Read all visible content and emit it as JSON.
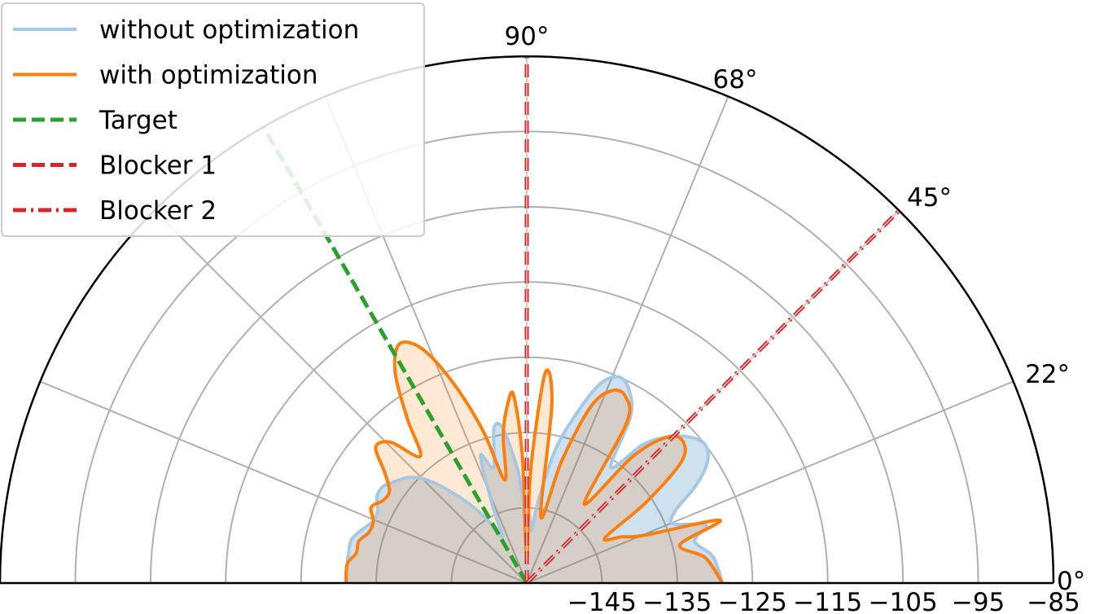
{
  "chart_data": {
    "type": "polar-area",
    "theta_range_deg": [
      0,
      180
    ],
    "r_range": [
      -155,
      -85
    ],
    "r_ticks": [
      -145,
      -135,
      -125,
      -115,
      -105,
      -95,
      -85
    ],
    "r_tick_labels": [
      "−145",
      "−135",
      "−125",
      "−115",
      "−105",
      "−95",
      "−85"
    ],
    "theta_gridlines_deg": [
      22.5,
      45,
      67.5,
      90,
      112.5,
      135,
      157.5
    ],
    "theta_tick_labels": [
      {
        "deg": 0,
        "label": "0°"
      },
      {
        "deg": 22.5,
        "label": "22°"
      },
      {
        "deg": 45,
        "label": "45°"
      },
      {
        "deg": 67.5,
        "label": "68°"
      },
      {
        "deg": 90,
        "label": "90°"
      }
    ],
    "grid": true,
    "legend_placement": "top-left",
    "series": [
      {
        "name": "without optimization",
        "color": "#a6c8e3",
        "fill": "#1f77b4",
        "theta_deg": [
          0,
          8,
          14,
          18,
          22,
          26,
          30,
          34,
          38,
          42,
          46,
          50,
          54,
          58,
          62,
          66,
          70,
          74,
          78,
          82,
          85,
          88,
          90,
          92,
          94,
          96,
          99,
          102,
          106,
          110,
          114,
          118,
          122,
          126,
          130,
          134,
          138,
          142,
          146,
          150,
          154,
          158,
          162,
          166,
          170,
          174,
          180
        ],
        "r": [
          -129,
          -130,
          -132,
          -130,
          -134,
          -133,
          -129,
          -126,
          -125,
          -126,
          -128,
          -131,
          -136,
          -129,
          -126,
          -125,
          -127,
          -132,
          -137,
          -144,
          -148,
          -146,
          -151,
          -146,
          -141,
          -138,
          -134,
          -134,
          -139,
          -137,
          -144,
          -148,
          -145,
          -142,
          -139,
          -136,
          -134,
          -133,
          -132,
          -132,
          -133,
          -133,
          -132,
          -131,
          -131,
          -131,
          -131
        ]
      },
      {
        "name": "with optimization",
        "color": "#ff7f0e",
        "fill": "#ff7f0e",
        "theta_deg": [
          0,
          8,
          14,
          18,
          22,
          26,
          30,
          34,
          38,
          42,
          46,
          50,
          54,
          58,
          62,
          66,
          70,
          74,
          78,
          82,
          85,
          88,
          90,
          92,
          94,
          96,
          99,
          102,
          106,
          110,
          114,
          118,
          122,
          126,
          130,
          134,
          138,
          142,
          146,
          150,
          154,
          158,
          162,
          166,
          170,
          174,
          180
        ],
        "r": [
          -129,
          -131,
          -134,
          -128,
          -138,
          -141,
          -143,
          -136,
          -129,
          -127,
          -128,
          -133,
          -142,
          -130,
          -127,
          -127,
          -130,
          -138,
          -146,
          -131,
          -127,
          -140,
          -152,
          -138,
          -130,
          -131,
          -135,
          -141,
          -134,
          -127,
          -121,
          -119,
          -122,
          -128,
          -133,
          -129,
          -128,
          -131,
          -133,
          -133,
          -132,
          -133,
          -133,
          -132,
          -132,
          -131,
          -131
        ]
      }
    ],
    "markers": [
      {
        "name": "Target",
        "theta_deg": 120,
        "style": "dashed",
        "color": "#2ca02c"
      },
      {
        "name": "Blocker 1",
        "theta_deg": 90,
        "style": "dashed",
        "color": "#d62728"
      },
      {
        "name": "Blocker 2",
        "theta_deg": 45,
        "style": "dashdot",
        "color": "#d62728"
      }
    ]
  }
}
